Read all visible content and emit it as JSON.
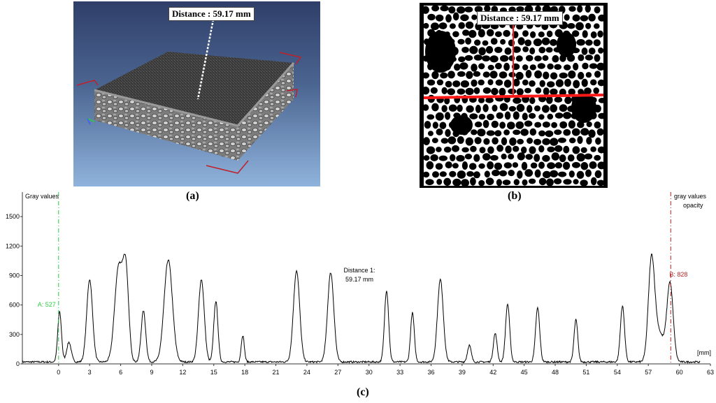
{
  "panel_a": {
    "caption": "(a)",
    "distance_label": "Distance : 59.17 mm"
  },
  "panel_b": {
    "caption": "(b)",
    "distance_label": "Distance : 59.17 mm"
  },
  "panel_c": {
    "caption": "(c)"
  },
  "chart_data": {
    "type": "line",
    "y_title": "Gray values",
    "x_unit": "[mm]",
    "right_title_1": "gray values",
    "right_title_2": "opacity",
    "xlim": [
      -3.5,
      63
    ],
    "ylim": [
      0,
      1750
    ],
    "x_ticks": [
      "0",
      "3",
      "6",
      "9",
      "12",
      "15",
      "18",
      "21",
      "24",
      "27",
      "30",
      "33",
      "36",
      "39",
      "42",
      "45",
      "48",
      "51",
      "54",
      "57",
      "60",
      "63"
    ],
    "y_ticks": [
      "0",
      "300",
      "600",
      "900",
      "1200",
      "1500"
    ],
    "marker_a": {
      "x": 0,
      "label": "A: 527",
      "color": "#2ecc40"
    },
    "marker_b": {
      "x": 59.17,
      "label": "B: 828",
      "color": "#b22222"
    },
    "distance_annotation": {
      "line1": "Distance 1:",
      "line2": "59.17 mm"
    },
    "baseline": 20,
    "series_end_x": 62,
    "peaks": [
      [
        0.1,
        510,
        0.18
      ],
      [
        1.0,
        200,
        0.22
      ],
      [
        3.0,
        840,
        0.28
      ],
      [
        5.8,
        960,
        0.38
      ],
      [
        6.5,
        880,
        0.28
      ],
      [
        8.2,
        520,
        0.22
      ],
      [
        10.6,
        1040,
        0.4
      ],
      [
        13.8,
        840,
        0.28
      ],
      [
        15.2,
        620,
        0.2
      ],
      [
        17.8,
        270,
        0.15
      ],
      [
        23.0,
        930,
        0.3
      ],
      [
        26.3,
        910,
        0.3
      ],
      [
        31.7,
        730,
        0.2
      ],
      [
        34.2,
        500,
        0.18
      ],
      [
        36.9,
        840,
        0.28
      ],
      [
        39.7,
        170,
        0.18
      ],
      [
        42.2,
        290,
        0.18
      ],
      [
        43.4,
        590,
        0.2
      ],
      [
        46.3,
        550,
        0.2
      ],
      [
        50.0,
        430,
        0.18
      ],
      [
        54.5,
        570,
        0.2
      ],
      [
        57.3,
        980,
        0.3
      ],
      [
        58.0,
        300,
        0.5
      ],
      [
        59.1,
        790,
        0.3
      ]
    ]
  }
}
